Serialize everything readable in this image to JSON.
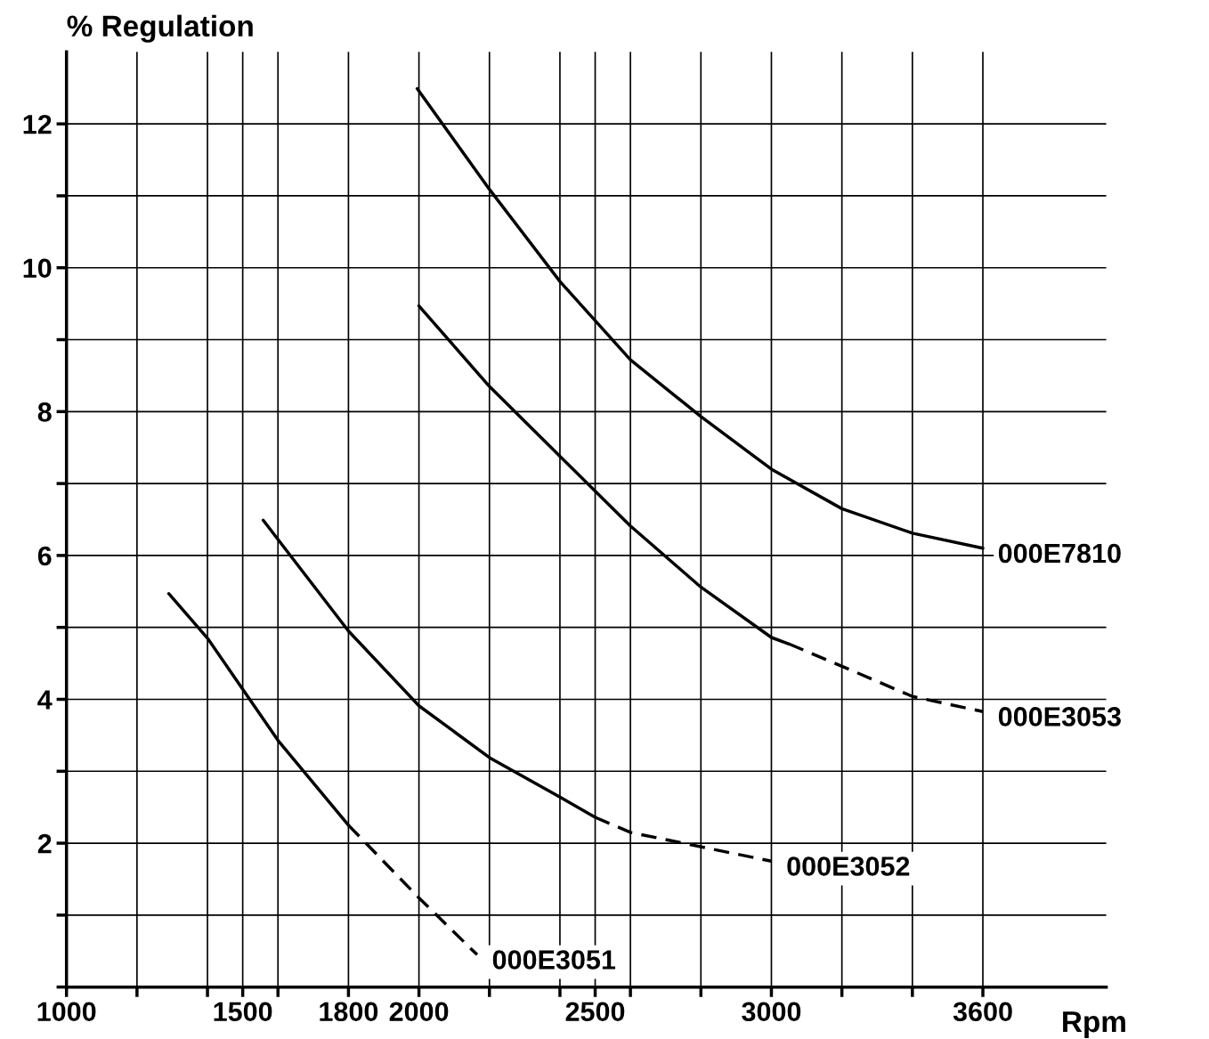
{
  "chart_data": {
    "type": "line",
    "xlabel": "Rpm",
    "ylabel": "% Regulation",
    "xlim": [
      1000,
      3950
    ],
    "ylim": [
      0,
      13
    ],
    "xticks": [
      {
        "value": 1000,
        "label": "1000"
      },
      {
        "value": 1200,
        "label": null
      },
      {
        "value": 1400,
        "label": null
      },
      {
        "value": 1500,
        "label": "1500"
      },
      {
        "value": 1600,
        "label": null
      },
      {
        "value": 1800,
        "label": "1800"
      },
      {
        "value": 2000,
        "label": "2000"
      },
      {
        "value": 2200,
        "label": null
      },
      {
        "value": 2400,
        "label": null
      },
      {
        "value": 2500,
        "label": "2500"
      },
      {
        "value": 2600,
        "label": null
      },
      {
        "value": 2800,
        "label": null
      },
      {
        "value": 3000,
        "label": "3000"
      },
      {
        "value": 3200,
        "label": null
      },
      {
        "value": 3400,
        "label": null
      },
      {
        "value": 3600,
        "label": "3600"
      }
    ],
    "yticks": [
      {
        "value": 0,
        "label": null
      },
      {
        "value": 1,
        "label": null
      },
      {
        "value": 2,
        "label": "2"
      },
      {
        "value": 3,
        "label": null
      },
      {
        "value": 4,
        "label": "4"
      },
      {
        "value": 5,
        "label": null
      },
      {
        "value": 6,
        "label": "6"
      },
      {
        "value": 7,
        "label": null
      },
      {
        "value": 8,
        "label": "8"
      },
      {
        "value": 9,
        "label": null
      },
      {
        "value": 10,
        "label": "10"
      },
      {
        "value": 11,
        "label": null
      },
      {
        "value": 12,
        "label": "12"
      }
    ],
    "grid": true,
    "legend": false,
    "marker": "none",
    "series": [
      {
        "color": "#000000",
        "line_style": "solid",
        "x": [
          1290,
          1400,
          1600,
          1800
        ],
        "values": [
          5.47,
          4.85,
          3.43,
          2.25
        ]
      },
      {
        "name": "000E3051",
        "color": "#000000",
        "line_style": "dashed",
        "x": [
          1800,
          2000,
          2165
        ],
        "values": [
          2.25,
          1.24,
          0.45
        ]
      },
      {
        "color": "#000000",
        "line_style": "solid",
        "x": [
          1558,
          1800,
          2000,
          2200,
          2400,
          2500
        ],
        "values": [
          6.49,
          4.95,
          3.91,
          3.19,
          2.64,
          2.36
        ]
      },
      {
        "name": "000E3052",
        "color": "#000000",
        "line_style": "dashed",
        "x": [
          2500,
          2600,
          2800,
          3000
        ],
        "values": [
          2.36,
          2.15,
          1.95,
          1.75
        ]
      },
      {
        "color": "#000000",
        "line_style": "solid",
        "x": [
          2000,
          2200,
          2400,
          2600,
          2800,
          3000,
          3050
        ],
        "values": [
          9.47,
          8.35,
          7.38,
          6.41,
          5.56,
          4.86,
          4.77
        ]
      },
      {
        "name": "000E3053",
        "color": "#000000",
        "line_style": "dashed",
        "x": [
          3050,
          3200,
          3400,
          3600
        ],
        "values": [
          4.77,
          4.46,
          4.04,
          3.83
        ]
      },
      {
        "name": "000E7810",
        "color": "#000000",
        "line_style": "solid",
        "x": [
          1995,
          2200,
          2400,
          2600,
          2800,
          3000,
          3200,
          3400,
          3600
        ],
        "values": [
          12.49,
          11.09,
          9.81,
          8.72,
          7.93,
          7.2,
          6.65,
          6.31,
          6.1
        ]
      }
    ]
  }
}
